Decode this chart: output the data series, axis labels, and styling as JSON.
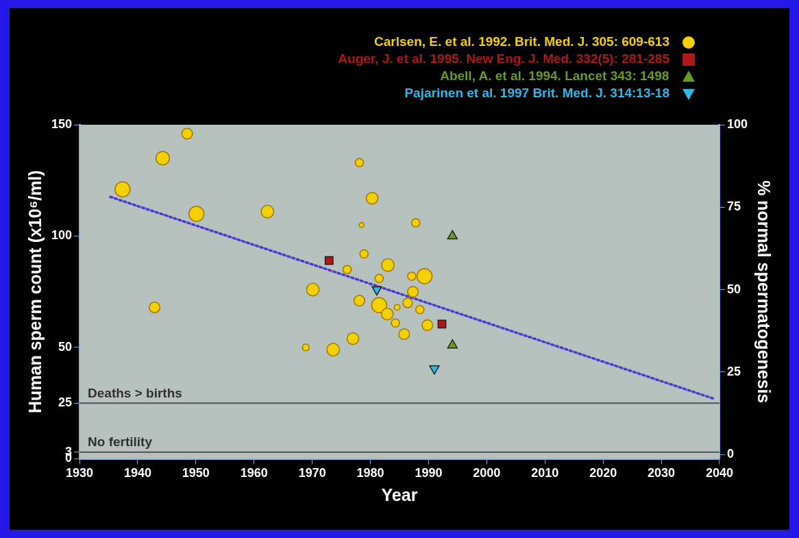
{
  "chart_data": {
    "type": "scatter",
    "xlabel": "Year",
    "ylabel": "Human sperm count (x10⁶/ml)",
    "y2label": "% normal spermatogenesis",
    "xlim": [
      1930,
      2040
    ],
    "xticks": [
      1930,
      1940,
      1950,
      1960,
      1970,
      1980,
      1990,
      2000,
      2010,
      2020,
      2030,
      2040
    ],
    "ylim": [
      0,
      150
    ],
    "yticks": [
      0,
      3,
      25,
      50,
      100,
      150
    ],
    "y2lim": [
      -1.3,
      100
    ],
    "y2ticks": [
      0,
      25,
      50,
      75,
      100
    ],
    "legend": "top right",
    "ref_lines": [
      {
        "axis": "y",
        "value": 25,
        "label": "Deaths > births",
        "color": "#505050"
      },
      {
        "axis": "y",
        "value": 3,
        "label": "No fertility",
        "color": "#505050"
      }
    ],
    "series": [
      {
        "name": "Carlsen, E. et al. 1992. Brit. Med. J. 305: 609-613",
        "type": "bubble",
        "color": "#f5d000",
        "marker": "circle",
        "x": [
          1937.4,
          1944.3,
          1948.5,
          1950.1,
          1962.3,
          1942.9,
          1978.1,
          1980.3,
          1978.5,
          1987.8,
          1978.9,
          1983.0,
          1976.0,
          1989.3,
          1987.1,
          1981.5,
          1970.1,
          1987.3,
          1978.1,
          1981.5,
          1986.4,
          1984.6,
          1982.9,
          1988.5,
          1984.3,
          1989.8,
          1985.8,
          1977.0,
          1973.6,
          1968.9
        ],
        "values": [
          121,
          135,
          146,
          110,
          111,
          68,
          133,
          117,
          105,
          106,
          92,
          87,
          85,
          82,
          82,
          81,
          76,
          75,
          71,
          69,
          70,
          68,
          65,
          67,
          61,
          60,
          56,
          54,
          49,
          50
        ],
        "sizes": [
          1,
          0.8,
          0.5,
          1,
          0.7,
          0.5,
          0.3,
          0.6,
          0.1,
          0.3,
          0.3,
          0.7,
          0.3,
          1,
          0.3,
          0.3,
          0.7,
          0.5,
          0.5,
          1,
          0.4,
          0.15,
          0.6,
          0.3,
          0.3,
          0.5,
          0.5,
          0.6,
          0.7,
          0.2
        ]
      },
      {
        "name": "Auger, J. et al. 1995. New Eng. J. Med. 332(5): 281-285",
        "color": "#b01818",
        "marker": "square",
        "x": [
          1972.9,
          1992.3
        ],
        "values": [
          89,
          60.5
        ]
      },
      {
        "name": "Abell, A. et al. 1994. Lancet 343: 1498",
        "color": "#6a9a20",
        "marker": "triangle",
        "x": [
          1994.1,
          1994.1
        ],
        "values": [
          100,
          51
        ]
      },
      {
        "name": "Pajarinen et al. 1997 Brit. Med. J. 314:13-18",
        "color": "#30b8e8",
        "marker": "triangle-down",
        "x": [
          1981.1,
          1991.0
        ],
        "values": [
          76,
          40.5
        ]
      },
      {
        "type": "line",
        "color": "#4a3ad0",
        "marker": "none",
        "line_style": "dotted",
        "x": [
          1935.3,
          2039
        ],
        "values": [
          117.6,
          27
        ]
      }
    ]
  }
}
